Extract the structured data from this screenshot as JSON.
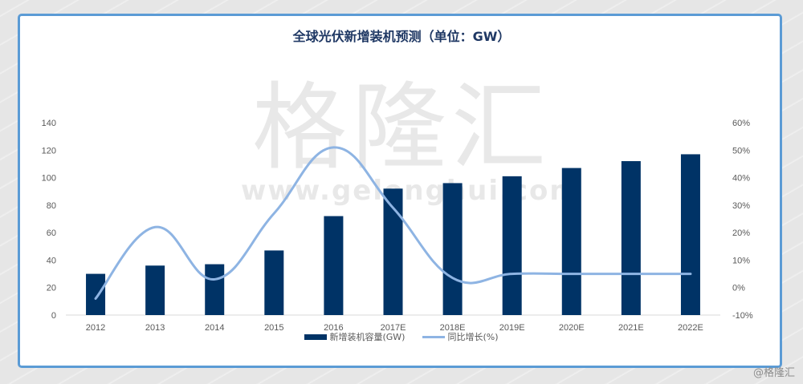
{
  "chart_data": {
    "type": "bar",
    "title": "全球光伏新增装机预测（单位：GW）",
    "categories": [
      "2012",
      "2013",
      "2014",
      "2015",
      "2016",
      "2017E",
      "2018E",
      "2019E",
      "2020E",
      "2021E",
      "2022E"
    ],
    "series": [
      {
        "name": "新增装机容量(GW)",
        "type": "bar",
        "axis": "left",
        "color": "#003366",
        "values": [
          30,
          36,
          37,
          47,
          72,
          92,
          96,
          101,
          107,
          112,
          117
        ]
      },
      {
        "name": "同比增长(%)",
        "type": "line",
        "axis": "right",
        "color": "#8eb4e3",
        "values": [
          -4,
          22,
          3,
          27,
          51,
          29,
          3.5,
          5,
          5,
          5,
          5
        ]
      }
    ],
    "left_axis": {
      "ylim": [
        0,
        140
      ],
      "ticks": [
        "0",
        "20",
        "40",
        "60",
        "80",
        "100",
        "120",
        "140"
      ]
    },
    "right_axis": {
      "ylim": [
        -10,
        60
      ],
      "ticks": [
        "-10%",
        "0%",
        "10%",
        "20%",
        "30%",
        "40%",
        "50%",
        "60%"
      ]
    },
    "xlabel": "",
    "ylabel": "",
    "grid": false,
    "legend_position": "bottom"
  },
  "legend": {
    "bar_label": "新增装机容量(GW)",
    "line_label": "同比增长(%)"
  },
  "watermark": {
    "cn": "格隆汇",
    "url": "www.gelonghui.com"
  },
  "credit": "@格隆汇"
}
